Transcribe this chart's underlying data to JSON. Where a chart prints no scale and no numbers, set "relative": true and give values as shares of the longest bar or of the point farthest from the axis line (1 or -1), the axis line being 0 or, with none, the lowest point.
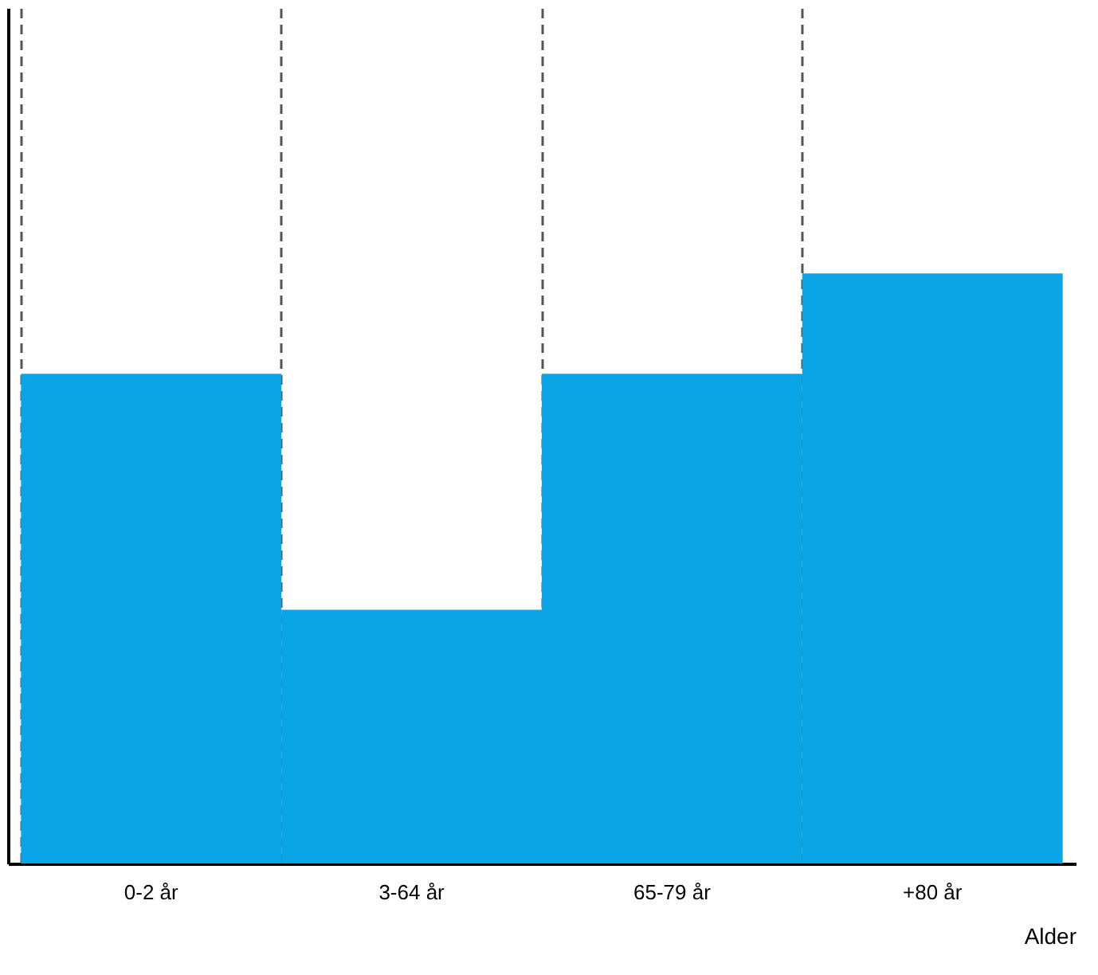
{
  "chart_data": {
    "type": "bar",
    "relative": true,
    "categories": [
      "0-2 år",
      "3-64 år",
      "65-79 år",
      "+80 år"
    ],
    "values": [
      0.83,
      0.43,
      0.83,
      1.0
    ],
    "color": "#0aa5e6",
    "xlabel": "Alder",
    "grid": "x",
    "tick_labels": "x"
  }
}
